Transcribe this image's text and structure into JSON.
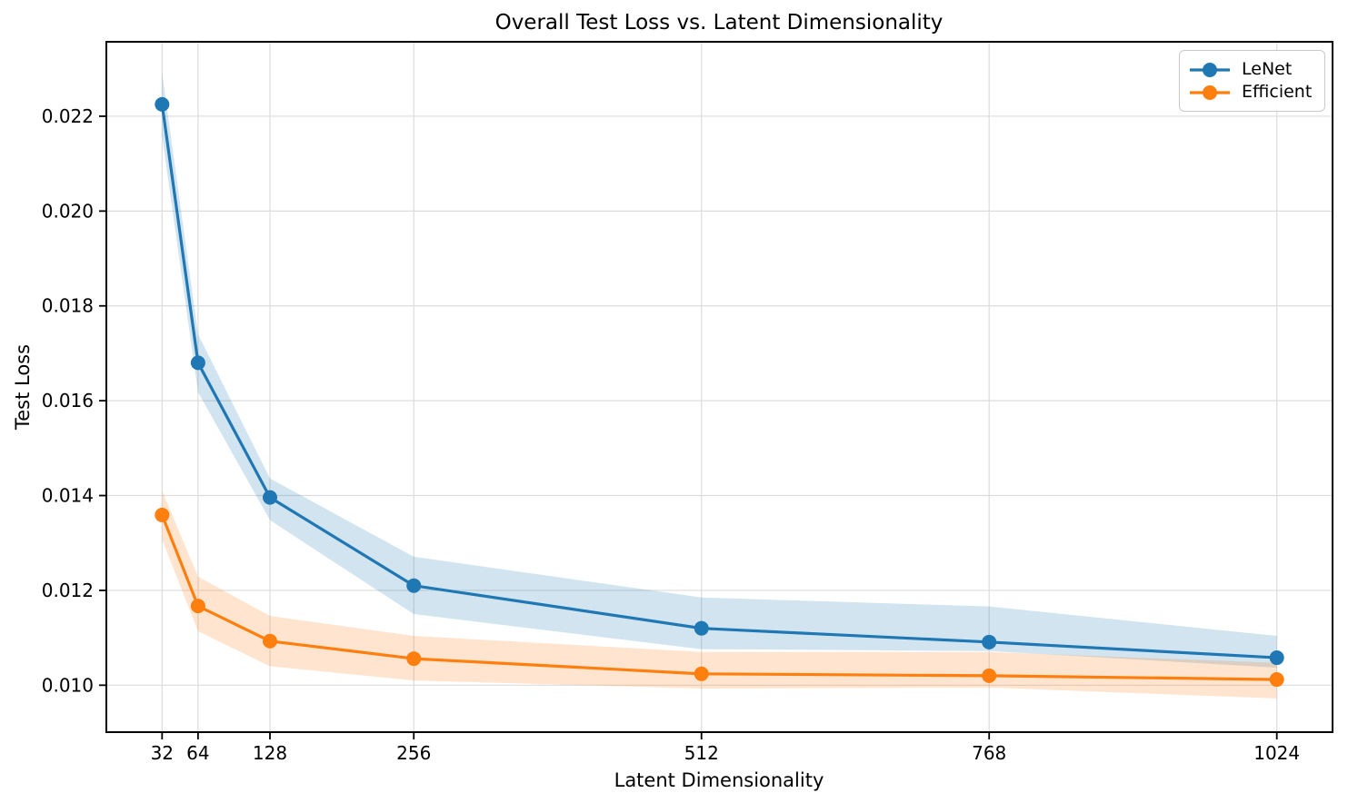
{
  "chart_data": {
    "type": "line",
    "title": "Overall Test Loss vs. Latent Dimensionality",
    "xlabel": "Latent Dimensionality",
    "ylabel": "Test Loss",
    "x": [
      32,
      64,
      128,
      256,
      512,
      768,
      1024
    ],
    "xticks": [
      32,
      64,
      128,
      256,
      512,
      768,
      1024
    ],
    "yticks": [
      0.01,
      0.012,
      0.014,
      0.016,
      0.018,
      0.02,
      0.022
    ],
    "xlim": [
      -17.6,
      1073.6
    ],
    "ylim": [
      0.00901,
      0.02357
    ],
    "grid": true,
    "grid_color": "#dcdcdc",
    "legend_position": "upper right",
    "series": [
      {
        "name": "LeNet",
        "color": "#1f77b4",
        "values": [
          0.02225,
          0.0168,
          0.01396,
          0.0121,
          0.0112,
          0.01091,
          0.01058
        ],
        "band_upper": [
          0.02292,
          0.0174,
          0.01436,
          0.01271,
          0.01185,
          0.01166,
          0.01104
        ],
        "band_lower": [
          0.02158,
          0.01618,
          0.01348,
          0.0115,
          0.01076,
          0.01072,
          0.01037
        ],
        "band_alpha": 0.2
      },
      {
        "name": "Efficient",
        "color": "#ff7f0e",
        "values": [
          0.01359,
          0.01167,
          0.01093,
          0.01056,
          0.01024,
          0.0102,
          0.01012
        ],
        "band_upper": [
          0.0141,
          0.01229,
          0.01146,
          0.01104,
          0.0107,
          0.0107,
          0.01047
        ],
        "band_lower": [
          0.01307,
          0.01114,
          0.0104,
          0.0101,
          0.00993,
          0.00995,
          0.00972
        ],
        "band_alpha": 0.2
      }
    ]
  }
}
